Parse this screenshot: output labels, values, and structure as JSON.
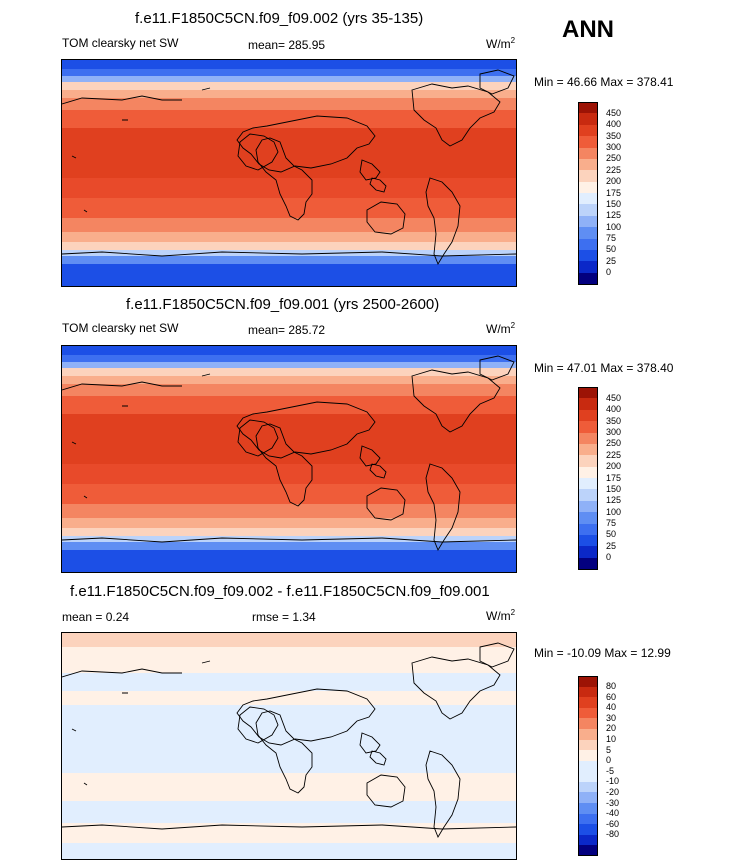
{
  "season": "ANN",
  "colors": {
    "abs_scale": [
      "#03007f",
      "#0b28c8",
      "#1c4fe6",
      "#3d6ff0",
      "#5f8ef3",
      "#8fb1f7",
      "#bcd3fa",
      "#e1eefe",
      "#fff1e6",
      "#fcd3bd",
      "#f9ae8c",
      "#f48561",
      "#ef5c39",
      "#e0401f",
      "#c82a10",
      "#9c1305"
    ],
    "diff_scale": [
      "#03007f",
      "#0b28c8",
      "#1c4fe6",
      "#3d6ff0",
      "#5f8ef3",
      "#8fb1f7",
      "#bcd3fa",
      "#e1eefe",
      "#e1eefe",
      "#fff1e6",
      "#fcd3bd",
      "#f9ae8c",
      "#f48561",
      "#ef5c39",
      "#e0401f",
      "#c82a10",
      "#9c1305"
    ]
  },
  "panels": [
    {
      "title": "f.e11.F1850C5CN.f09_f09.002 (yrs 35-135)",
      "left_label": "TOM clearsky net SW",
      "mean_label": "mean= 285.95",
      "units": "W/m",
      "units_sup": "2",
      "minmax": "Min =  46.66 Max = 378.41",
      "colorbar_ticks": [
        "450",
        "400",
        "350",
        "300",
        "250",
        "225",
        "200",
        "175",
        "150",
        "125",
        "100",
        "75",
        "50",
        "25",
        "0"
      ],
      "kind": "abs"
    },
    {
      "title": "f.e11.F1850C5CN.f09_f09.001 (yrs 2500-2600)",
      "left_label": "TOM clearsky net SW",
      "mean_label": "mean= 285.72",
      "units": "W/m",
      "units_sup": "2",
      "minmax": "Min =  47.01 Max = 378.40",
      "colorbar_ticks": [
        "450",
        "400",
        "350",
        "300",
        "250",
        "225",
        "200",
        "175",
        "150",
        "125",
        "100",
        "75",
        "50",
        "25",
        "0"
      ],
      "kind": "abs"
    },
    {
      "title": "f.e11.F1850C5CN.f09_f09.002 - f.e11.F1850C5CN.f09_f09.001",
      "left_label": "mean =   0.24",
      "mean_label": "rmse =   1.34",
      "units": "W/m",
      "units_sup": "2",
      "minmax": "Min = -10.09 Max =  12.99",
      "colorbar_ticks": [
        "80",
        "60",
        "40",
        "30",
        "20",
        "10",
        "5",
        "0",
        "-5",
        "-10",
        "-20",
        "-30",
        "-40",
        "-60",
        "-80"
      ],
      "kind": "diff"
    }
  ]
}
